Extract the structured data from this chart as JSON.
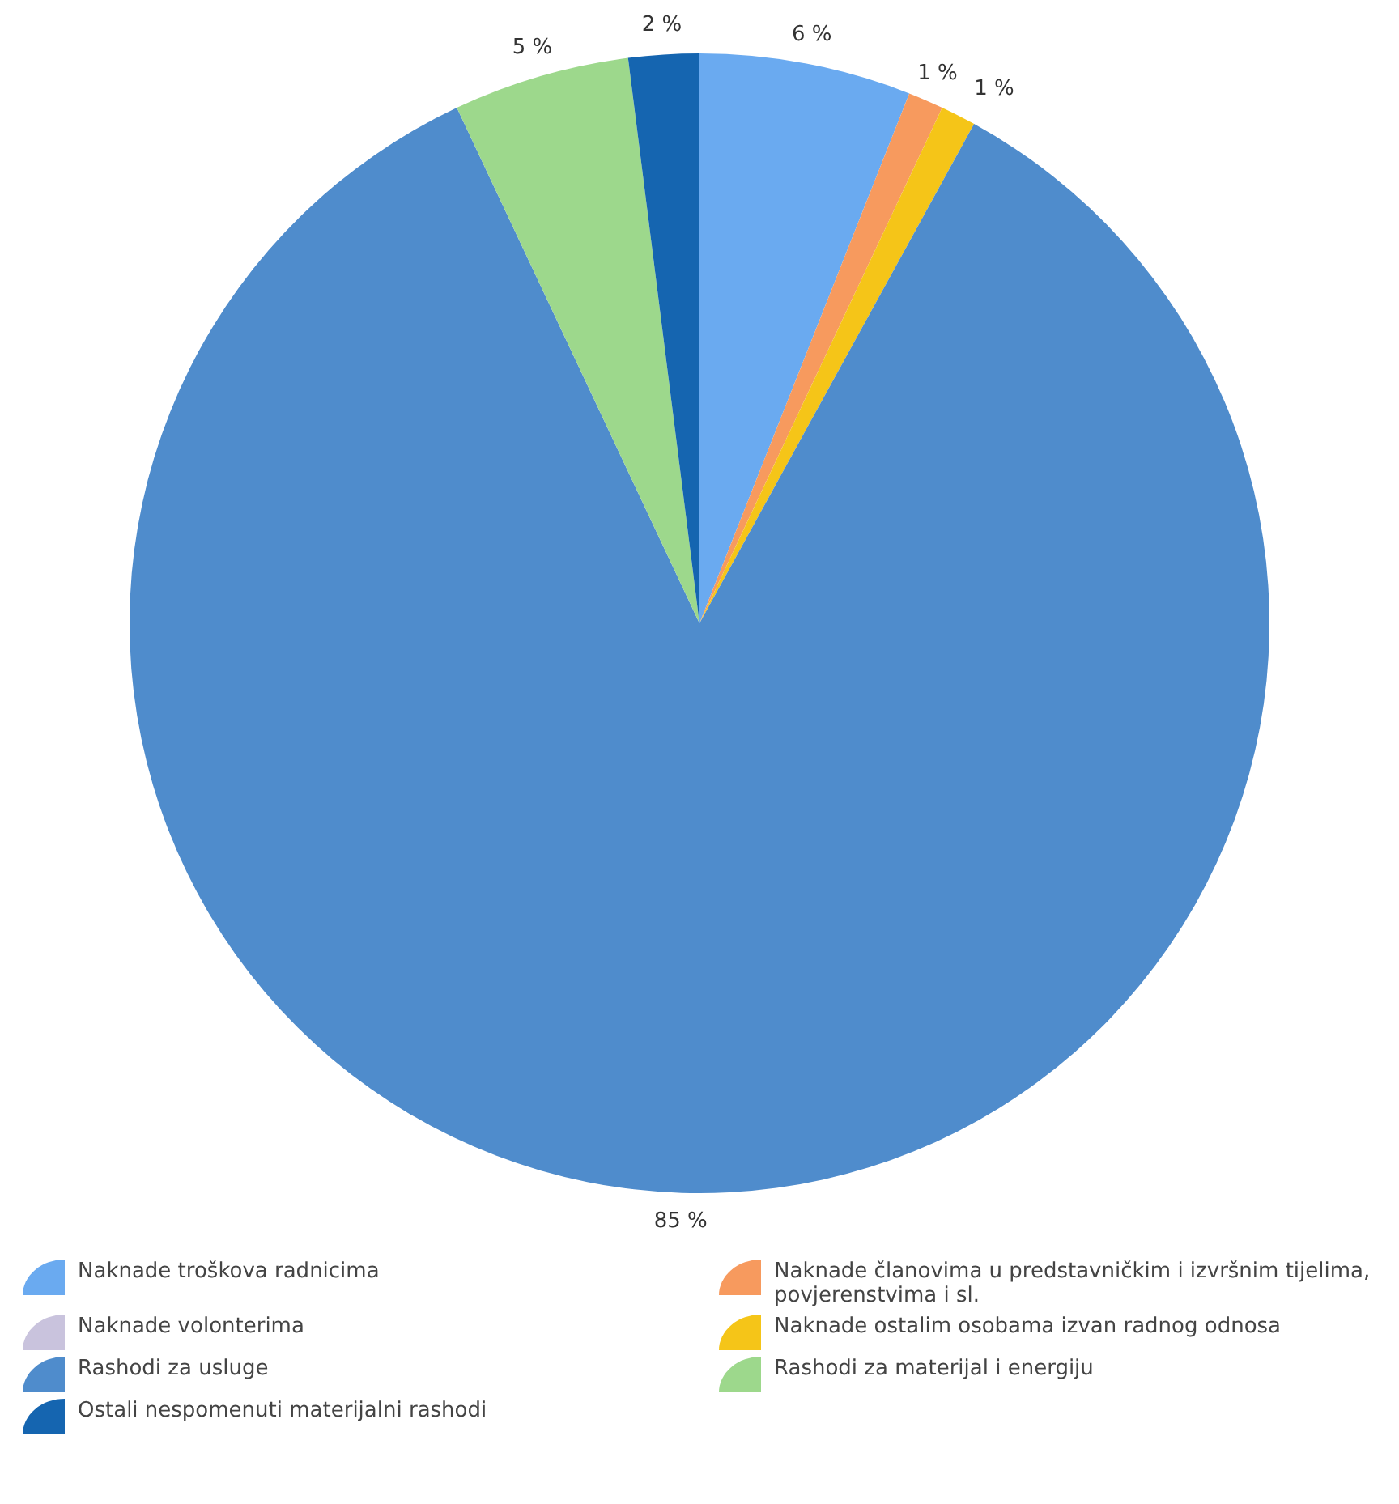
{
  "chart_data": {
    "type": "pie",
    "categories": [
      "Naknade troškova radnicima",
      "Naknade članovima u predstavničkim i izvršnim tijelima, povjerenstvima i sl.",
      "Naknade volonterima",
      "Naknade ostalim osobama izvan radnog odnosa",
      "Rashodi za usluge",
      "Rashodi za materijal i energiju",
      "Ostali nespomenuti materijalni rashodi"
    ],
    "values": [
      6,
      1,
      0,
      1,
      85,
      5,
      2
    ],
    "colors": [
      "#6aaaf0",
      "#f79a5e",
      "#c9c3dd",
      "#f5c518",
      "#4f8ccc",
      "#9dd88c",
      "#1565b0"
    ],
    "value_labels": [
      "6 %",
      "1 %",
      null,
      "1 %",
      "85 %",
      "5 %",
      "2 %"
    ],
    "legend": "bottom"
  }
}
